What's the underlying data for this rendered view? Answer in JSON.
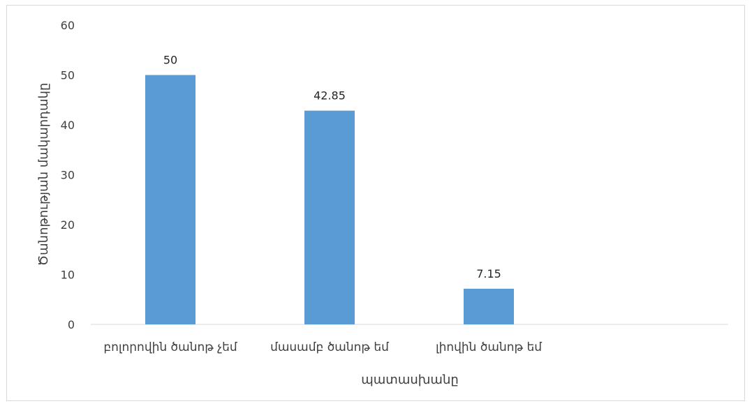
{
  "chart_data": {
    "type": "bar",
    "categories": [
      "բոլորովին ծանոթ չեմ",
      "մասամբ ծանոթ եմ",
      "լիովին ծանոթ եմ"
    ],
    "values": [
      50,
      42.85,
      7.15
    ],
    "data_labels": [
      "50",
      "42.85",
      "7.15"
    ],
    "xlabel": "պատասխանը",
    "ylabel": "Ծանոթության մակարդակը",
    "ylim": [
      0,
      60
    ],
    "yticks": [
      0,
      10,
      20,
      30,
      40,
      50,
      60
    ],
    "grid": false,
    "bar_color": "#5b9bd5",
    "axis_color": "#d9d9d9",
    "text_color": "#404040"
  }
}
